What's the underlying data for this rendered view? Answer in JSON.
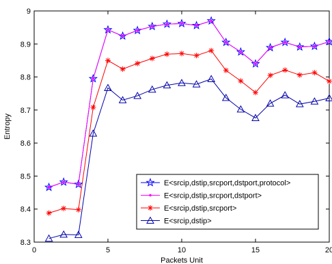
{
  "chart_data": {
    "type": "line",
    "title": "",
    "xlabel": "Packets Unit",
    "ylabel": "Entropy",
    "xlim": [
      0,
      20
    ],
    "ylim": [
      8.3,
      9.0
    ],
    "xticks": [
      0,
      5,
      10,
      15,
      20
    ],
    "yticks": [
      8.3,
      8.4,
      8.5,
      8.6,
      8.7,
      8.8,
      8.9,
      9.0
    ],
    "xtick_labels": [
      "0",
      "5",
      "10",
      "15",
      "20"
    ],
    "ytick_labels": [
      "8.3",
      "8.4",
      "8.5",
      "8.6",
      "8.7",
      "8.8",
      "8.9",
      "9"
    ],
    "grid": false,
    "legend_position": "lower-right",
    "x": [
      1,
      2,
      3,
      4,
      5,
      6,
      7,
      8,
      9,
      10,
      11,
      12,
      13,
      14,
      15,
      16,
      17,
      18,
      19,
      20
    ],
    "series": [
      {
        "name": "E<srcip,dstip,srcport,dstport,protocol>",
        "color": "#0000ff",
        "marker": "star",
        "values": [
          8.466,
          8.482,
          8.475,
          8.795,
          8.943,
          8.924,
          8.941,
          8.953,
          8.96,
          8.962,
          8.956,
          8.97,
          8.905,
          8.876,
          8.84,
          8.889,
          8.905,
          8.891,
          8.893,
          8.907
        ]
      },
      {
        "name": "E<srcip,dstip,srcport,dstport>",
        "color": "#ff00ff",
        "marker": "point",
        "values": [
          8.466,
          8.482,
          8.475,
          8.795,
          8.943,
          8.924,
          8.941,
          8.953,
          8.96,
          8.962,
          8.956,
          8.97,
          8.905,
          8.876,
          8.84,
          8.889,
          8.905,
          8.891,
          8.893,
          8.907
        ]
      },
      {
        "name": "E<srcip,dstip,srcport>",
        "color": "#ff0000",
        "marker": "asterisk",
        "values": [
          8.388,
          8.402,
          8.398,
          8.708,
          8.85,
          8.824,
          8.841,
          8.856,
          8.869,
          8.871,
          8.865,
          8.88,
          8.82,
          8.788,
          8.753,
          8.805,
          8.821,
          8.806,
          8.813,
          8.787
        ]
      },
      {
        "name": "E<srcip,dstip>",
        "color": "#0000aa",
        "marker": "triangle",
        "values": [
          8.311,
          8.323,
          8.322,
          8.629,
          8.767,
          8.73,
          8.743,
          8.762,
          8.775,
          8.782,
          8.778,
          8.794,
          8.737,
          8.702,
          8.676,
          8.72,
          8.745,
          8.718,
          8.726,
          8.736
        ]
      }
    ]
  }
}
